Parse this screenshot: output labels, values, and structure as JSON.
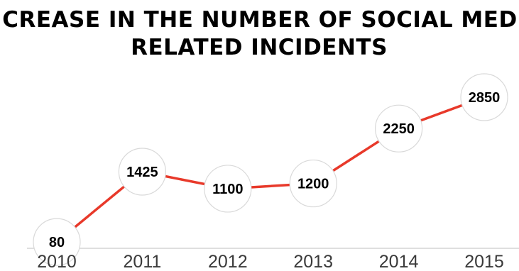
{
  "chart_data": {
    "type": "line",
    "title_lines": [
      "INCREASE IN THE NUMBER OF SOCIAL MEDIA",
      "RELATED INCIDENTS"
    ],
    "categories": [
      "2010",
      "2011",
      "2012",
      "2013",
      "2014",
      "2015"
    ],
    "series": [
      {
        "values": [
          80,
          1425,
          1100,
          1200,
          2250,
          2850
        ]
      }
    ],
    "xlabel": "",
    "ylabel": "",
    "grid": false,
    "legend": "none",
    "data_labels": true,
    "colors": {
      "line": "#e8392a",
      "marker_fill": "#ffffff",
      "marker_stroke": "#d9d9d9",
      "axis": "#bfbfbf"
    }
  }
}
